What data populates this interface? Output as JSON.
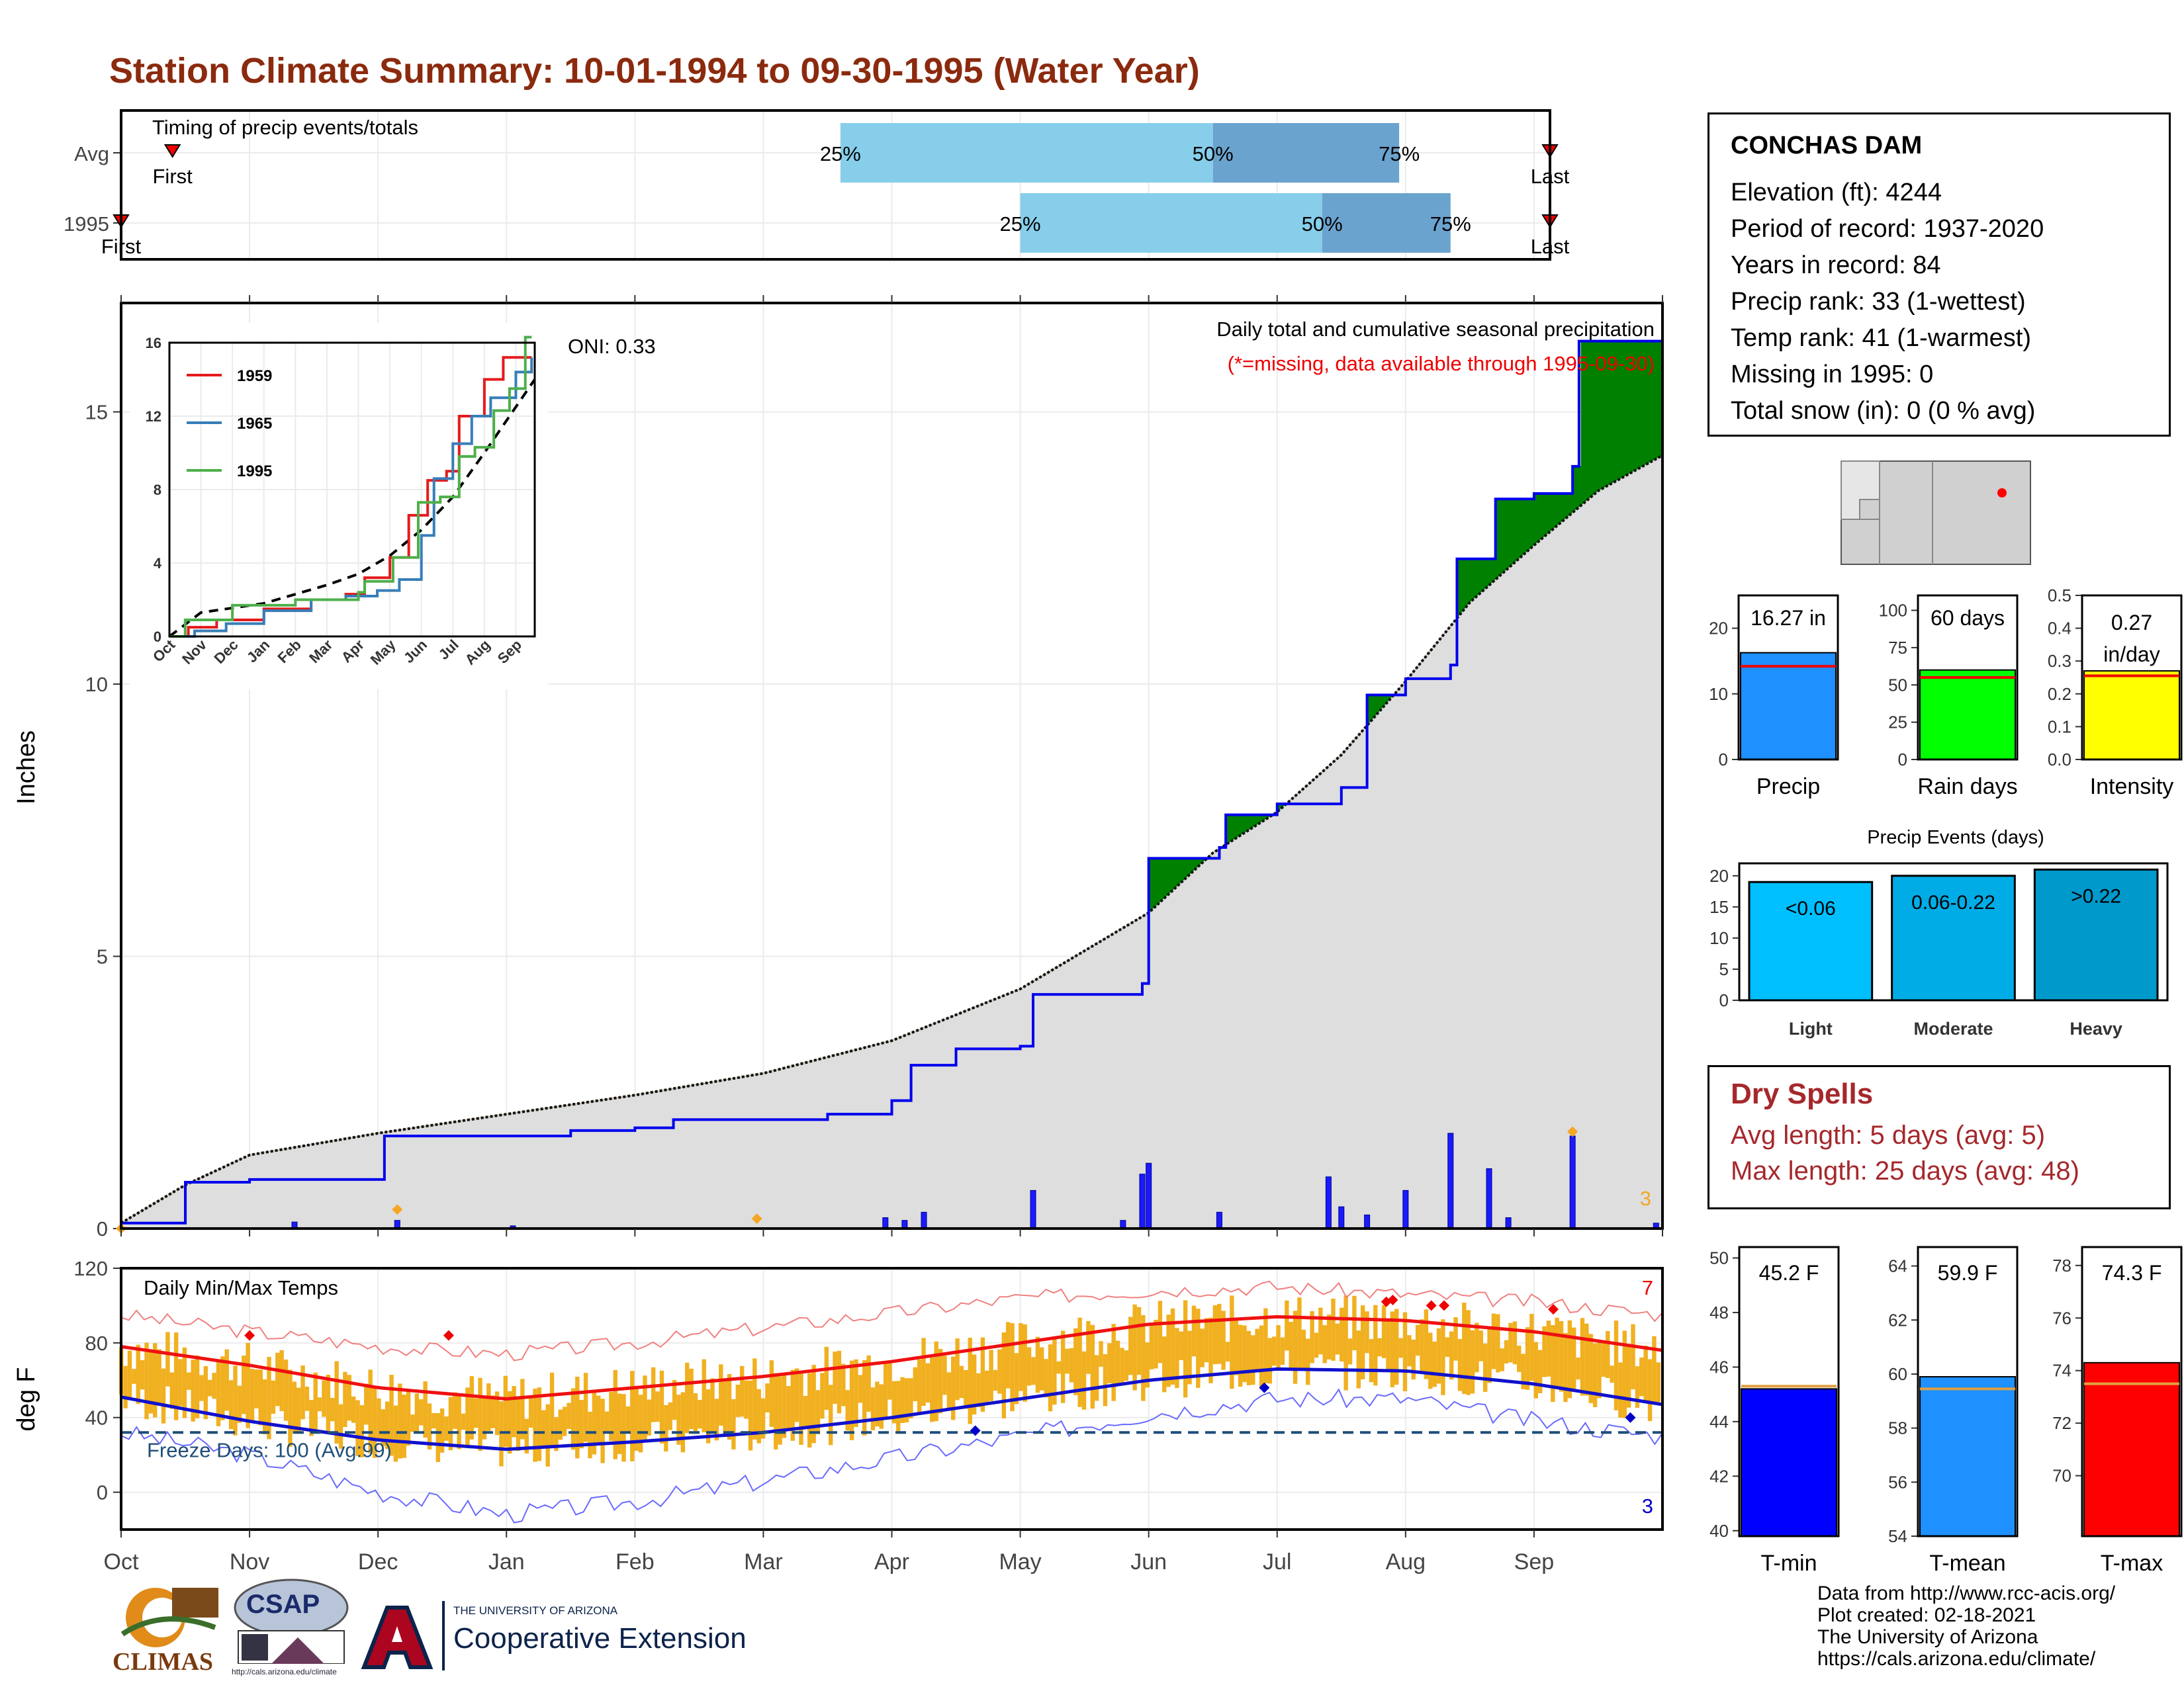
{
  "title": "Station Climate Summary: 10-01-1994 to 09-30-1995 (Water Year)",
  "colors": {
    "title": "#8b2a0e",
    "deficit": "#7a4a00",
    "surplus": "#008000",
    "cum_line": "#0000ee",
    "avg_fill": "#dedede",
    "q_light": "#87ceeb",
    "q_dark": "#6ba3cf",
    "temp_bars": "#f0b020",
    "max_line": "#ee1111",
    "min_line": "#1111cc",
    "freeze_line": "#1f4e79",
    "dry_spells": "#a5282c"
  },
  "timing_panel": {
    "label": "Timing of precip events/totals",
    "rows": [
      {
        "label": "Avg",
        "first_label": "First",
        "last_label": "Last",
        "first_month": 0.4,
        "last_month": 11.75,
        "q25": 5.6,
        "q50": 8.5,
        "q75": 9.95,
        "q25_label": "25%",
        "q50_label": "50%",
        "q75_label": "75%"
      },
      {
        "label": "1995",
        "first_label": "First",
        "last_label": "Last",
        "first_month": 0.0,
        "last_month": 12.05,
        "q25": 7.0,
        "q50": 9.35,
        "q75": 10.35,
        "q25_label": "25%",
        "q50_label": "50%",
        "q75_label": "75%"
      }
    ]
  },
  "precip_panel": {
    "ylabel": "Inches",
    "yticks": [
      "0",
      "5",
      "10",
      "15"
    ],
    "oni_label": "ONI: 0.33",
    "subtitle": "Daily total and cumulative seasonal precipitation",
    "missing_note": "(*=missing, data available through 1995-09-30)",
    "extreme_count": "3"
  },
  "inset": {
    "yticks": [
      "0",
      "4",
      "8",
      "12",
      "16"
    ],
    "xticks": [
      "Oct",
      "Nov",
      "Dec",
      "Jan",
      "Feb",
      "Mar",
      "Apr",
      "May",
      "Jun",
      "Jul",
      "Aug",
      "Sep"
    ],
    "legend": [
      {
        "name": "1959",
        "color": "#e41a1c"
      },
      {
        "name": "1965",
        "color": "#377eb8"
      },
      {
        "name": "1995",
        "color": "#4daf4a"
      }
    ]
  },
  "temp_panel": {
    "ylabel": "deg F",
    "label": "Daily Min/Max Temps",
    "freeze_label": "Freeze Days: 100 (Avg:99)",
    "max_count": "7",
    "min_count": "3",
    "yticks": [
      "0",
      "40",
      "80",
      "120"
    ],
    "months": [
      "Oct",
      "Nov",
      "Dec",
      "Jan",
      "Feb",
      "Mar",
      "Apr",
      "May",
      "Jun",
      "Jul",
      "Aug",
      "Sep"
    ]
  },
  "station": {
    "name": "CONCHAS DAM",
    "lines": [
      "Elevation (ft): 4244",
      "Period of record: 1937-2020",
      "Years in record: 84",
      "Precip rank: 33 (1-wettest)",
      "Temp rank: 41 (1-warmest)",
      "Missing in 1995: 0",
      "Total snow (in): 0 (0 % avg)"
    ]
  },
  "mini_bars": [
    {
      "name": "Precip",
      "value_label": "16.27 in",
      "value": 16.27,
      "avg": 14.2,
      "ymax": 25,
      "yticks": [
        "0",
        "10",
        "20"
      ],
      "color": "#1e90ff"
    },
    {
      "name": "Rain days",
      "value_label": "60 days",
      "value": 60,
      "avg": 55,
      "ymax": 110,
      "yticks": [
        "0",
        "25",
        "50",
        "75",
        "100"
      ],
      "color": "#00ff00"
    },
    {
      "name": "Intensity",
      "value_label": "0.27 in/day",
      "value": 0.27,
      "avg": 0.255,
      "ymax": 0.5,
      "yticks": [
        "0.0",
        "0.1",
        "0.2",
        "0.3",
        "0.4",
        "0.5"
      ],
      "color": "#ffff00"
    }
  ],
  "events": {
    "title": "Precip Events (days)",
    "yticks": [
      "0",
      "5",
      "10",
      "15",
      "20"
    ],
    "bars": [
      {
        "name": "Light",
        "label": "<0.06",
        "value": 19,
        "color": "#00bfff"
      },
      {
        "name": "Moderate",
        "label": "0.06-0.22",
        "value": 20,
        "color": "#00ace6"
      },
      {
        "name": "Heavy",
        "label": ">0.22",
        "value": 21,
        "color": "#0099cc"
      }
    ]
  },
  "dry_spells": {
    "title": "Dry Spells",
    "avg_line": "Avg length: 5 days (avg: 5)",
    "max_line": "Max length: 25 days (avg: 48)"
  },
  "temp_bars": [
    {
      "name": "T-min",
      "value_label": "45.2 F",
      "value": 45.2,
      "avg": 45.3,
      "ymin": 39.8,
      "ymax": 50.4,
      "yticks": [
        "40",
        "42",
        "44",
        "46",
        "48",
        "50"
      ],
      "color": "#0000ff"
    },
    {
      "name": "T-mean",
      "value_label": "59.9 F",
      "value": 59.9,
      "avg": 59.45,
      "ymin": 54,
      "ymax": 64.7,
      "yticks": [
        "54",
        "56",
        "58",
        "60",
        "62",
        "64"
      ],
      "color": "#1e90ff"
    },
    {
      "name": "T-max",
      "value_label": "74.3 F",
      "value": 74.3,
      "avg": 73.5,
      "ymin": 67.7,
      "ymax": 78.7,
      "yticks": [
        "70",
        "72",
        "74",
        "76",
        "78"
      ],
      "color": "#ff0000"
    }
  ],
  "credits": [
    "Data from http://www.rcc-acis.org/",
    "Plot created: 02-18-2021",
    "The University of Arizona",
    "https://cals.arizona.edu/climate/"
  ],
  "logos": {
    "climas": "CLIMAS",
    "csap": "CSAP",
    "csap_url": "http://cals.arizona.edu/climate",
    "ua_small": "THE UNIVERSITY OF ARIZONA",
    "ua_big": "Cooperative Extension"
  },
  "chart_data": [
    {
      "type": "area",
      "title": "Daily total and cumulative seasonal precipitation",
      "ylabel": "Inches",
      "ylim": [
        0,
        17
      ],
      "series": [
        {
          "name": "1995",
          "x_month": [
            0,
            0.45,
            0.5,
            1.0,
            1.5,
            2.0,
            2.05,
            3.0,
            3.5,
            4.0,
            4.3,
            5.0,
            5.5,
            5.7,
            6.0,
            6.15,
            6.5,
            7.0,
            7.1,
            7.5,
            7.95,
            8.0,
            8.55,
            8.6,
            9.0,
            9.5,
            9.7,
            10.0,
            10.35,
            10.4,
            10.7,
            11.0,
            11.3,
            11.35,
            12.0
          ],
          "y": [
            0.1,
            0.1,
            0.85,
            0.9,
            0.9,
            0.9,
            1.7,
            1.7,
            1.8,
            1.85,
            2.0,
            2.0,
            2.1,
            2.1,
            2.35,
            3.0,
            3.3,
            3.35,
            4.3,
            4.3,
            4.5,
            6.8,
            7.0,
            7.6,
            7.8,
            8.1,
            9.8,
            10.1,
            10.35,
            12.3,
            13.4,
            13.5,
            14.0,
            16.3,
            16.3
          ]
        },
        {
          "name": "average",
          "x_month": [
            0,
            0.5,
            1,
            2,
            3,
            4,
            5,
            6,
            7,
            8,
            8.5,
            9,
            9.5,
            10,
            10.5,
            11,
            11.5,
            12
          ],
          "y": [
            0.1,
            0.8,
            1.35,
            1.75,
            2.1,
            2.45,
            2.85,
            3.45,
            4.4,
            5.8,
            6.9,
            7.65,
            8.7,
            10.05,
            11.5,
            12.55,
            13.55,
            14.2
          ]
        }
      ],
      "daily_precip": [
        {
          "month": 1.35,
          "inches": 0.12
        },
        {
          "month": 2.15,
          "inches": 0.15
        },
        {
          "month": 3.05,
          "inches": 0.05
        },
        {
          "month": 5.95,
          "inches": 0.2
        },
        {
          "month": 6.1,
          "inches": 0.15
        },
        {
          "month": 6.25,
          "inches": 0.3
        },
        {
          "month": 7.1,
          "inches": 0.7
        },
        {
          "month": 7.8,
          "inches": 0.15
        },
        {
          "month": 7.95,
          "inches": 1.0
        },
        {
          "month": 8.0,
          "inches": 1.2
        },
        {
          "month": 8.55,
          "inches": 0.3
        },
        {
          "month": 9.4,
          "inches": 0.95
        },
        {
          "month": 9.5,
          "inches": 0.4
        },
        {
          "month": 9.7,
          "inches": 0.25
        },
        {
          "month": 10.0,
          "inches": 0.7
        },
        {
          "month": 10.35,
          "inches": 1.75
        },
        {
          "month": 10.65,
          "inches": 1.1
        },
        {
          "month": 10.8,
          "inches": 0.2
        },
        {
          "month": 11.3,
          "inches": 1.7
        },
        {
          "month": 11.95,
          "inches": 0.1
        }
      ]
    },
    {
      "type": "line",
      "title": "Daily Min/Max Temps",
      "ylabel": "deg F",
      "ylim": [
        -20,
        120
      ],
      "x": [
        "Oct",
        "Nov",
        "Dec",
        "Jan",
        "Feb",
        "Mar",
        "Apr",
        "May",
        "Jun",
        "Jul",
        "Aug",
        "Sep",
        "Oct"
      ],
      "series": [
        {
          "name": "avg max",
          "values": [
            78,
            68,
            56,
            50,
            56,
            62,
            70,
            80,
            90,
            94,
            92,
            86,
            76
          ]
        },
        {
          "name": "avg min",
          "values": [
            51,
            38,
            28,
            23,
            27,
            32,
            40,
            50,
            60,
            66,
            65,
            58,
            47
          ]
        },
        {
          "name": "record max",
          "values": [
            95,
            86,
            78,
            74,
            80,
            88,
            96,
            104,
            108,
            110,
            106,
            102,
            95
          ]
        },
        {
          "name": "record min",
          "values": [
            32,
            20,
            0,
            -12,
            -5,
            6,
            18,
            30,
            42,
            50,
            50,
            38,
            30
          ]
        }
      ],
      "freeze_threshold": 32
    },
    {
      "type": "bar",
      "title": "Precip Events (days)",
      "categories": [
        "Light",
        "Moderate",
        "Heavy"
      ],
      "values": [
        19,
        20,
        21
      ]
    }
  ]
}
